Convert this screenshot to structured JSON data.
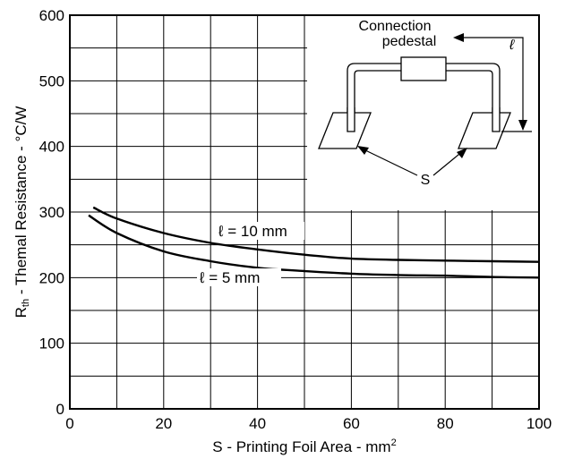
{
  "chart_data": {
    "type": "line",
    "title": "",
    "xlabel": "S - Printing Foil Area - mm",
    "xlabel_superscript": "2",
    "ylabel_main": "R",
    "ylabel_subscript": "th",
    "ylabel_rest": " - Themal Resistance - °C/W",
    "xlim": [
      0,
      100
    ],
    "ylim": [
      0,
      600
    ],
    "xticks": [
      0,
      20,
      40,
      60,
      80,
      100
    ],
    "yticks": [
      0,
      100,
      200,
      300,
      400,
      500,
      600
    ],
    "xtick_labels": [
      "0",
      "20",
      "40",
      "60",
      "80",
      "100"
    ],
    "ytick_labels": [
      "0",
      "100",
      "200",
      "300",
      "400",
      "500",
      "600"
    ],
    "grid": true,
    "series": [
      {
        "name": "ℓ = 10 mm",
        "x": [
          5,
          10,
          20,
          30,
          40,
          50,
          60,
          70,
          80,
          90,
          100
        ],
        "y": [
          307,
          290,
          268,
          253,
          243,
          235,
          229,
          227,
          226,
          225,
          224
        ]
      },
      {
        "name": "ℓ = 5 mm",
        "x": [
          4,
          10,
          20,
          30,
          40,
          50,
          60,
          70,
          80,
          90,
          100
        ],
        "y": [
          295,
          268,
          240,
          225,
          215,
          210,
          206,
          204,
          203,
          201,
          200
        ]
      }
    ],
    "inset": {
      "label_line1": "Connection",
      "label_line2": "pedestal",
      "length_symbol": "ℓ",
      "area_label": "S"
    }
  }
}
